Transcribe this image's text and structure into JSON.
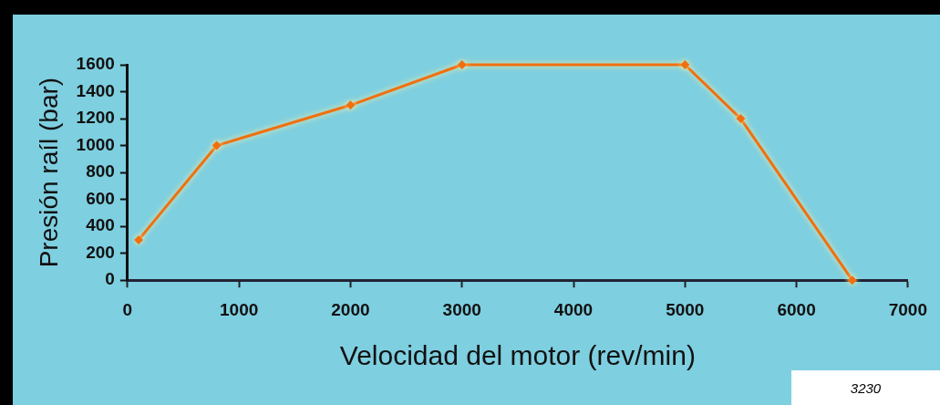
{
  "chart_data": {
    "type": "line",
    "xlabel": "Velocidad del motor (rev/min)",
    "ylabel": "Presión raíl (bar)",
    "x": [
      100,
      800,
      2000,
      3000,
      5000,
      5500,
      6500
    ],
    "series": [
      {
        "color": "#f07010",
        "values": [
          300,
          1000,
          1300,
          1600,
          1600,
          1200,
          0
        ]
      }
    ],
    "xlim": [
      0,
      7000
    ],
    "xticks": [
      0,
      1000,
      2000,
      3000,
      4000,
      5000,
      6000,
      7000
    ],
    "ylim": [
      0,
      1600
    ],
    "yticks": [
      0,
      200,
      400,
      600,
      800,
      1000,
      1200,
      1400,
      1600
    ],
    "grid": false,
    "legend": false,
    "marker": "diamond",
    "line_style": "solid",
    "annotations": [
      "3230"
    ]
  }
}
